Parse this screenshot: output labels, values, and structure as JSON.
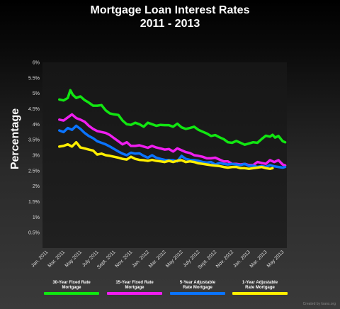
{
  "chart_data": {
    "type": "line",
    "title_line1": "Mortgage Loan Interest Rates",
    "title_line2": "2011 - 2013",
    "ylabel": "Percentage",
    "xlabel": "",
    "ylim": [
      0,
      6
    ],
    "yticks": [
      "6%",
      "5.5%",
      "5%",
      "4.5%",
      "4%",
      "3.5%",
      "3%",
      "2.5%",
      "2%",
      "1.5%",
      "1%",
      "0.5%"
    ],
    "ytick_values": [
      6,
      5.5,
      5,
      4.5,
      4,
      3.5,
      3,
      2.5,
      2,
      1.5,
      1,
      0.5
    ],
    "xticks": [
      "Jan. 2011",
      "Mar. 2011",
      "May 2011",
      "July 2011",
      "Sept. 2011",
      "Nov. 2011",
      "Jan. 2012",
      "Mar. 2012",
      "May 2012",
      "July 2012",
      "Sept. 2012",
      "Nov. 2012",
      "Jan. 2013",
      "Mar. 2013",
      "May 2013"
    ],
    "xtick_months": [
      0,
      2,
      4,
      6,
      8,
      10,
      12,
      14,
      16,
      18,
      20,
      22,
      24,
      26,
      28
    ],
    "xlim_months": [
      0,
      29
    ],
    "grid": false,
    "legend_position": "bottom",
    "series": [
      {
        "name": "30-Year Fixed Rate Mortgage",
        "color": "#11e611",
        "x": [
          2,
          2.5,
          3,
          3.3,
          3.6,
          4,
          4.5,
          5,
          5.5,
          6,
          6.5,
          7,
          7.5,
          8,
          8.5,
          9,
          9.5,
          10,
          10.5,
          11,
          11.5,
          12,
          12.5,
          13,
          13.5,
          14,
          14.5,
          15,
          15.5,
          16,
          16.5,
          17,
          17.5,
          18,
          18.5,
          19,
          19.5,
          20,
          20.5,
          21,
          21.5,
          22,
          22.5,
          23,
          23.5,
          24,
          24.5,
          25,
          25.5,
          26,
          26.5,
          27,
          27.3,
          27.6,
          28,
          28.5,
          28.8
        ],
        "values": [
          4.8,
          4.77,
          4.85,
          5.1,
          4.95,
          4.85,
          4.9,
          4.78,
          4.7,
          4.6,
          4.6,
          4.62,
          4.45,
          4.35,
          4.32,
          4.3,
          4.12,
          4.0,
          3.98,
          4.05,
          4.0,
          3.92,
          4.05,
          4.0,
          3.95,
          3.98,
          3.97,
          3.97,
          3.92,
          4.02,
          3.9,
          3.85,
          3.88,
          3.92,
          3.82,
          3.76,
          3.7,
          3.62,
          3.65,
          3.58,
          3.52,
          3.42,
          3.4,
          3.46,
          3.4,
          3.34,
          3.38,
          3.42,
          3.4,
          3.52,
          3.63,
          3.6,
          3.66,
          3.57,
          3.62,
          3.45,
          3.42
        ]
      },
      {
        "name": "15-Year Fixed Rate Mortgage",
        "color": "#f01ef0",
        "x": [
          2,
          2.5,
          3,
          3.5,
          4,
          4.5,
          5,
          5.5,
          6,
          6.5,
          7,
          7.5,
          8,
          8.5,
          9,
          9.5,
          10,
          10.5,
          11,
          11.5,
          12,
          12.5,
          13,
          13.5,
          14,
          14.5,
          15,
          15.5,
          16,
          16.5,
          17,
          17.5,
          18,
          18.5,
          19,
          19.5,
          20,
          20.5,
          21,
          21.5,
          22,
          22.5,
          23,
          23.5,
          24,
          24.5,
          25,
          25.5,
          26,
          26.5,
          27,
          27.5,
          28,
          28.5,
          28.8
        ],
        "values": [
          4.15,
          4.12,
          4.22,
          4.32,
          4.2,
          4.15,
          4.08,
          3.95,
          3.85,
          3.78,
          3.75,
          3.72,
          3.65,
          3.55,
          3.45,
          3.35,
          3.42,
          3.3,
          3.3,
          3.32,
          3.28,
          3.24,
          3.3,
          3.25,
          3.22,
          3.18,
          3.2,
          3.12,
          3.22,
          3.16,
          3.1,
          3.07,
          3.0,
          2.98,
          2.95,
          2.9,
          2.9,
          2.92,
          2.86,
          2.8,
          2.8,
          2.72,
          2.72,
          2.7,
          2.72,
          2.68,
          2.68,
          2.78,
          2.75,
          2.72,
          2.84,
          2.78,
          2.84,
          2.7,
          2.67
        ]
      },
      {
        "name": "5-Year Adjustable Rate Mortgage",
        "color": "#0a74ff",
        "x": [
          2,
          2.5,
          3,
          3.5,
          4,
          4.5,
          5,
          5.5,
          6,
          6.5,
          7,
          7.5,
          8,
          8.5,
          9,
          9.5,
          10,
          10.5,
          11,
          11.5,
          12,
          12.5,
          13,
          13.5,
          14,
          14.5,
          15,
          15.5,
          16,
          16.5,
          17,
          17.5,
          18,
          18.5,
          19,
          19.5,
          20,
          20.5,
          21,
          21.5,
          22,
          22.5,
          23,
          23.5,
          24,
          24.5,
          25,
          25.5,
          26,
          26.5,
          27,
          27.5,
          28,
          28.5,
          28.8
        ],
        "values": [
          3.8,
          3.75,
          3.88,
          3.82,
          3.95,
          3.85,
          3.72,
          3.62,
          3.55,
          3.45,
          3.4,
          3.35,
          3.28,
          3.2,
          3.12,
          3.05,
          3.0,
          3.08,
          3.05,
          3.06,
          2.98,
          2.92,
          3.0,
          2.92,
          2.88,
          2.85,
          2.84,
          2.84,
          2.8,
          2.98,
          2.88,
          2.85,
          2.84,
          2.82,
          2.78,
          2.76,
          2.78,
          2.7,
          2.75,
          2.72,
          2.7,
          2.72,
          2.7,
          2.68,
          2.72,
          2.65,
          2.66,
          2.62,
          2.65,
          2.62,
          2.68,
          2.64,
          2.62,
          2.6,
          2.62
        ]
      },
      {
        "name": "1-Year Adjustable Rate Mortgage",
        "color": "#ffee00",
        "x": [
          2,
          2.5,
          3,
          3.5,
          4,
          4.5,
          5,
          5.5,
          6,
          6.5,
          7,
          7.5,
          8,
          8.5,
          9,
          9.5,
          10,
          10.5,
          11,
          11.5,
          12,
          12.5,
          13,
          13.5,
          14,
          14.5,
          15,
          15.5,
          16,
          16.5,
          17,
          17.5,
          18,
          18.5,
          19,
          19.5,
          20,
          20.5,
          21,
          21.5,
          22,
          22.5,
          23,
          23.5,
          24,
          24.5,
          25,
          25.5,
          26,
          26.5,
          27,
          27.3
        ],
        "values": [
          3.28,
          3.3,
          3.35,
          3.28,
          3.42,
          3.25,
          3.22,
          3.18,
          3.15,
          3.02,
          3.05,
          3.0,
          2.98,
          2.95,
          2.92,
          2.88,
          2.86,
          2.95,
          2.88,
          2.85,
          2.84,
          2.82,
          2.85,
          2.82,
          2.8,
          2.78,
          2.82,
          2.78,
          2.82,
          2.84,
          2.78,
          2.8,
          2.78,
          2.74,
          2.72,
          2.7,
          2.68,
          2.66,
          2.65,
          2.62,
          2.6,
          2.62,
          2.62,
          2.58,
          2.58,
          2.56,
          2.58,
          2.6,
          2.62,
          2.58,
          2.56,
          2.58
        ]
      }
    ],
    "legend": [
      {
        "line1": "30-Year Fixed Rate",
        "line2": "Mortgage",
        "color": "#11e611"
      },
      {
        "line1": "15-Year Fixed Rate",
        "line2": "Mortgage",
        "color": "#f01ef0"
      },
      {
        "line1": "5-Year Adjustable",
        "line2": "Rate Mortgage",
        "color": "#0a74ff"
      },
      {
        "line1": "1-Year Adjustable",
        "line2": "Rate Mortgage",
        "color": "#ffee00"
      }
    ]
  },
  "credit": "Created by loans.org"
}
